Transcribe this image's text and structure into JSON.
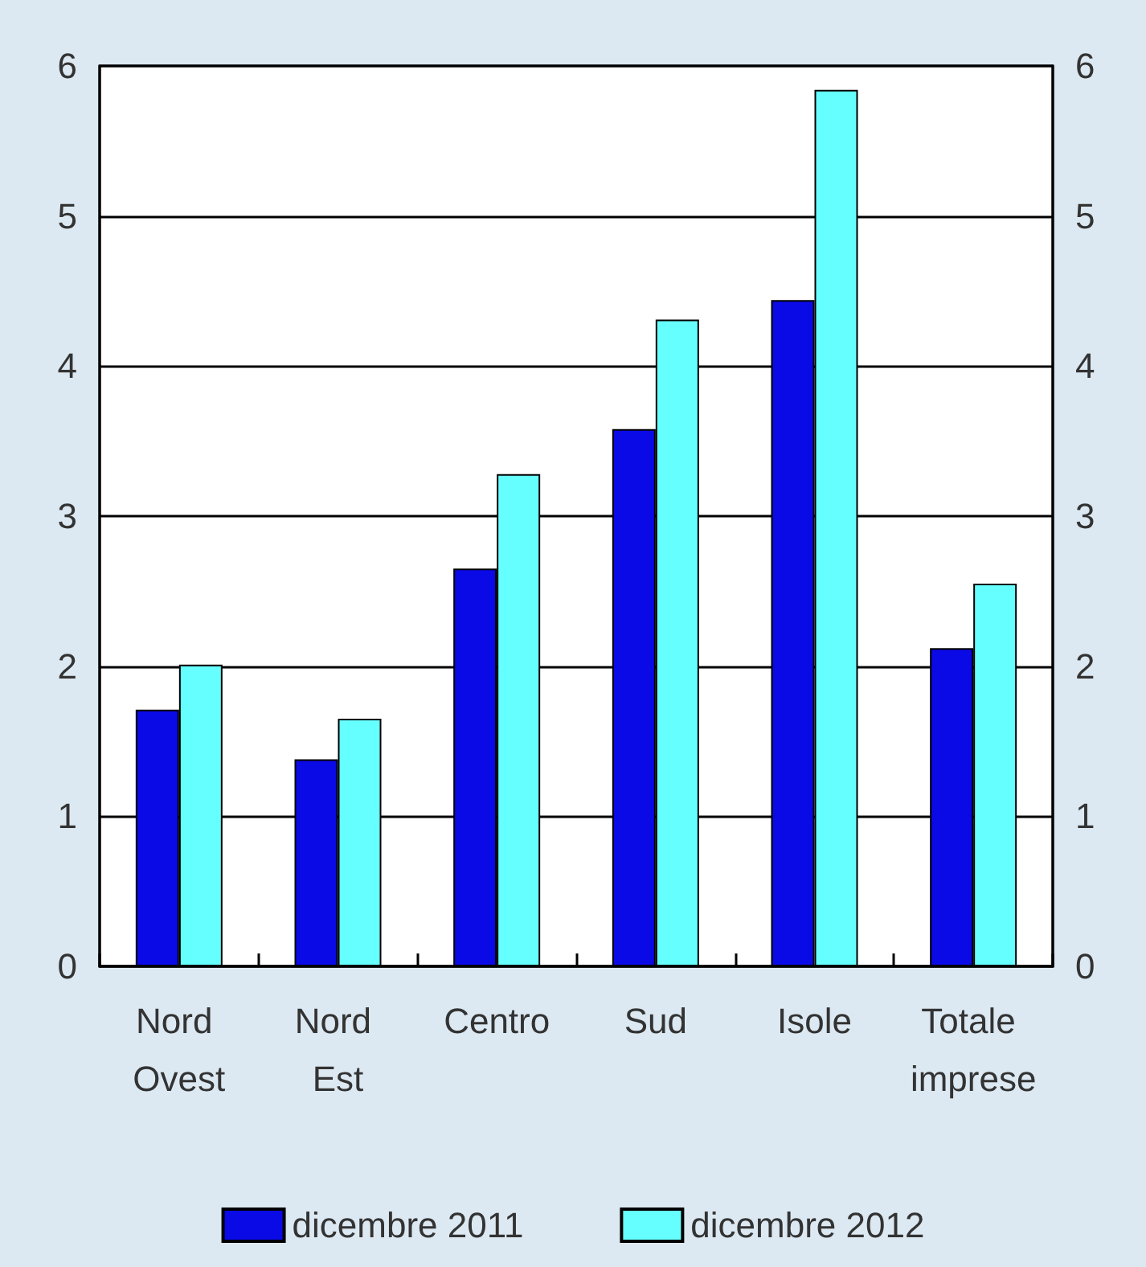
{
  "chart_data": {
    "type": "bar",
    "categories": [
      "Nord Ovest",
      "Nord Est",
      "Centro",
      "Sud",
      "Isole",
      "Totale imprese"
    ],
    "series": [
      {
        "name": "dicembre 2011",
        "color": "#0a0ae6",
        "values": [
          1.71,
          1.38,
          2.65,
          3.58,
          4.44,
          2.12
        ]
      },
      {
        "name": "dicembre 2012",
        "color": "#66ffff",
        "values": [
          2.01,
          1.65,
          3.28,
          4.31,
          5.84,
          2.55
        ]
      }
    ],
    "ylim": [
      0,
      6
    ],
    "yticks": [
      0,
      1,
      2,
      3,
      4,
      5,
      6
    ],
    "y2lim": [
      0,
      6
    ],
    "y2ticks": [
      0,
      1,
      2,
      3,
      4,
      5,
      6
    ],
    "grid": "y",
    "legend": "bottom"
  }
}
